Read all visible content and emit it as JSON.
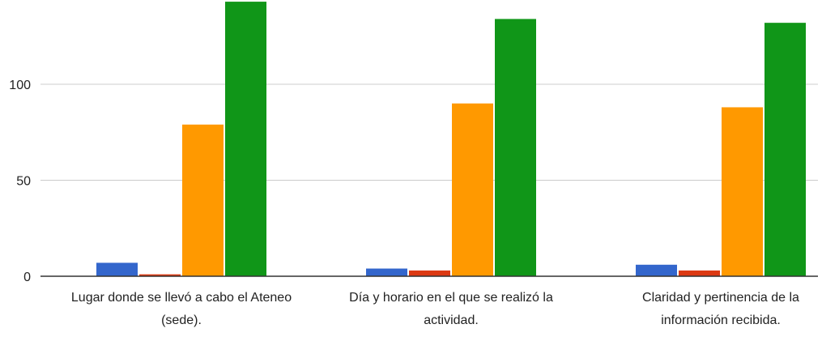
{
  "chart_data": {
    "type": "bar",
    "title": "",
    "xlabel": "",
    "ylabel": "",
    "ylim": [
      0,
      150
    ],
    "yticks": [
      0,
      50,
      100
    ],
    "grid": true,
    "categories": [
      [
        "Lugar donde se llevó a cabo el Ateneo",
        "(sede)."
      ],
      [
        "Día y horario en el que se realizó la",
        "actividad."
      ],
      [
        "Claridad y pertinencia de la",
        "información recibida."
      ]
    ],
    "series": [
      {
        "color": "#3366cc",
        "values": [
          7,
          4,
          6
        ]
      },
      {
        "color": "#dc3912",
        "values": [
          1,
          3,
          3
        ]
      },
      {
        "color": "#ff9900",
        "values": [
          79,
          90,
          88
        ]
      },
      {
        "color": "#109618",
        "values": [
          143,
          134,
          132
        ]
      }
    ],
    "colors": {
      "gridline": "#cccccc",
      "baseline": "#333333",
      "text": "#222222"
    }
  }
}
